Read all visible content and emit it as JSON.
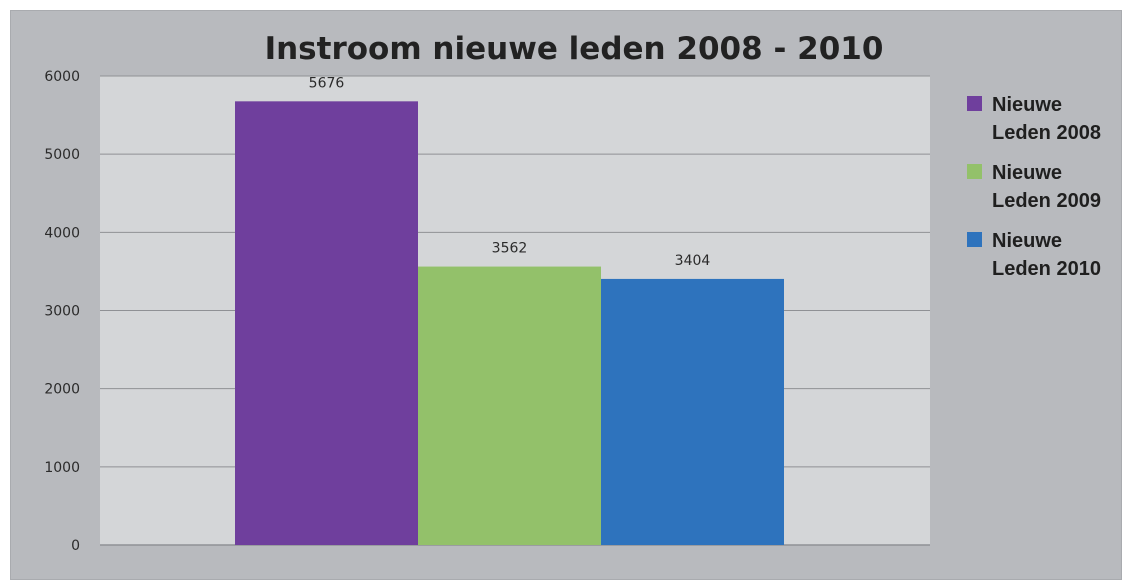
{
  "chart_data": {
    "type": "bar",
    "title": "Instroom nieuwe leden 2008 - 2010",
    "xlabel": "",
    "ylabel": "",
    "ylim": [
      0,
      6000
    ],
    "yticks": [
      0,
      1000,
      2000,
      3000,
      4000,
      5000,
      6000
    ],
    "grid": true,
    "legend_position": "right",
    "categories": [
      ""
    ],
    "series": [
      {
        "name": "Nieuwe Leden 2008",
        "legend_lines": [
          "Nieuwe",
          "Leden 2008"
        ],
        "values": [
          5676
        ],
        "label": "5676",
        "color": "#6f3f9d"
      },
      {
        "name": "Nieuwe Leden 2009",
        "legend_lines": [
          "Nieuwe",
          "Leden 2009"
        ],
        "values": [
          3562
        ],
        "label": "3562",
        "color": "#93c16a"
      },
      {
        "name": "Nieuwe Leden 2010",
        "legend_lines": [
          "Nieuwe",
          "Leden 2010"
        ],
        "values": [
          3404
        ],
        "label": "3404",
        "color": "#2e73bd"
      }
    ],
    "colors": {
      "frame": "#b8babe",
      "plot_area": "#d4d6d8",
      "gridline": "#8f9195"
    }
  }
}
